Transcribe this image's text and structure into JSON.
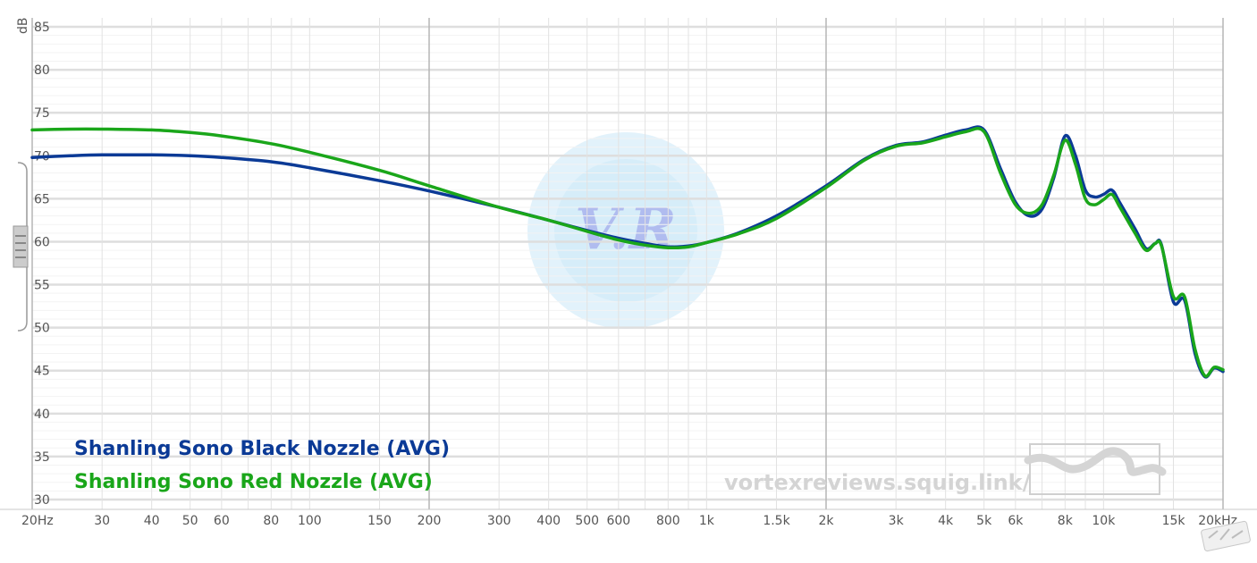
{
  "chart_data": {
    "type": "line",
    "title": "",
    "xlabel": "",
    "ylabel": "dB",
    "x_scale": "log",
    "xlim": [
      20,
      20000
    ],
    "ylim": [
      30,
      85
    ],
    "grid": true,
    "legend_position": "bottom-left",
    "x_tick_labels": [
      {
        "value": 20,
        "label": "20Hz",
        "major": true
      },
      {
        "value": 30,
        "label": "30",
        "major": false
      },
      {
        "value": 40,
        "label": "40",
        "major": false
      },
      {
        "value": 50,
        "label": "50",
        "major": false
      },
      {
        "value": 60,
        "label": "60",
        "major": false
      },
      {
        "value": 80,
        "label": "80",
        "major": false
      },
      {
        "value": 100,
        "label": "100",
        "major": false
      },
      {
        "value": 150,
        "label": "150",
        "major": false
      },
      {
        "value": 200,
        "label": "200",
        "major": true
      },
      {
        "value": 300,
        "label": "300",
        "major": false
      },
      {
        "value": 400,
        "label": "400",
        "major": false
      },
      {
        "value": 500,
        "label": "500",
        "major": false
      },
      {
        "value": 600,
        "label": "600",
        "major": false
      },
      {
        "value": 800,
        "label": "800",
        "major": false
      },
      {
        "value": 1000,
        "label": "1k",
        "major": false
      },
      {
        "value": 1500,
        "label": "1.5k",
        "major": false
      },
      {
        "value": 2000,
        "label": "2k",
        "major": true
      },
      {
        "value": 3000,
        "label": "3k",
        "major": false
      },
      {
        "value": 4000,
        "label": "4k",
        "major": false
      },
      {
        "value": 5000,
        "label": "5k",
        "major": false
      },
      {
        "value": 6000,
        "label": "6k",
        "major": false
      },
      {
        "value": 8000,
        "label": "8k",
        "major": false
      },
      {
        "value": 10000,
        "label": "10k",
        "major": false
      },
      {
        "value": 15000,
        "label": "15k",
        "major": false
      },
      {
        "value": 20000,
        "label": "20kHz",
        "major": true
      }
    ],
    "y_ticks": [
      30,
      35,
      40,
      45,
      50,
      55,
      60,
      65,
      70,
      75,
      80,
      85
    ],
    "series": [
      {
        "name": "Shanling Sono Black Nozzle (AVG)",
        "color": "#0b3a96",
        "points": [
          [
            20,
            69.8
          ],
          [
            25,
            70.0
          ],
          [
            30,
            70.1
          ],
          [
            40,
            70.1
          ],
          [
            50,
            70.0
          ],
          [
            60,
            69.8
          ],
          [
            80,
            69.3
          ],
          [
            100,
            68.6
          ],
          [
            150,
            67.1
          ],
          [
            200,
            65.9
          ],
          [
            300,
            64.0
          ],
          [
            400,
            62.5
          ],
          [
            500,
            61.3
          ],
          [
            600,
            60.4
          ],
          [
            700,
            59.8
          ],
          [
            800,
            59.4
          ],
          [
            900,
            59.5
          ],
          [
            1000,
            59.9
          ],
          [
            1200,
            61.0
          ],
          [
            1500,
            63.0
          ],
          [
            2000,
            66.5
          ],
          [
            2500,
            69.6
          ],
          [
            3000,
            71.2
          ],
          [
            3500,
            71.6
          ],
          [
            4000,
            72.4
          ],
          [
            4500,
            73.0
          ],
          [
            5000,
            73.0
          ],
          [
            5500,
            68.5
          ],
          [
            6000,
            64.6
          ],
          [
            6500,
            63.0
          ],
          [
            7000,
            63.8
          ],
          [
            7500,
            67.5
          ],
          [
            8000,
            72.3
          ],
          [
            8500,
            70.0
          ],
          [
            9000,
            66.0
          ],
          [
            9500,
            65.2
          ],
          [
            10000,
            65.5
          ],
          [
            10500,
            66.0
          ],
          [
            11000,
            64.5
          ],
          [
            12000,
            61.5
          ],
          [
            12800,
            59.2
          ],
          [
            13500,
            59.8
          ],
          [
            14000,
            59.6
          ],
          [
            15000,
            53.0
          ],
          [
            16000,
            53.2
          ],
          [
            17000,
            47.0
          ],
          [
            18000,
            44.3
          ],
          [
            19000,
            45.3
          ],
          [
            20000,
            44.9
          ]
        ]
      },
      {
        "name": "Shanling Sono Red Nozzle (AVG)",
        "color": "#1aa61a",
        "points": [
          [
            20,
            73.0
          ],
          [
            25,
            73.1
          ],
          [
            30,
            73.1
          ],
          [
            40,
            73.0
          ],
          [
            50,
            72.7
          ],
          [
            60,
            72.3
          ],
          [
            80,
            71.4
          ],
          [
            100,
            70.4
          ],
          [
            150,
            68.3
          ],
          [
            200,
            66.5
          ],
          [
            300,
            64.0
          ],
          [
            400,
            62.5
          ],
          [
            500,
            61.2
          ],
          [
            600,
            60.2
          ],
          [
            700,
            59.6
          ],
          [
            800,
            59.3
          ],
          [
            900,
            59.4
          ],
          [
            1000,
            59.9
          ],
          [
            1200,
            60.9
          ],
          [
            1500,
            62.7
          ],
          [
            2000,
            66.3
          ],
          [
            2500,
            69.5
          ],
          [
            3000,
            71.1
          ],
          [
            3500,
            71.5
          ],
          [
            4000,
            72.2
          ],
          [
            4500,
            72.8
          ],
          [
            5000,
            72.8
          ],
          [
            5500,
            68.0
          ],
          [
            6000,
            64.3
          ],
          [
            6500,
            63.3
          ],
          [
            7000,
            64.3
          ],
          [
            7500,
            67.8
          ],
          [
            8000,
            71.8
          ],
          [
            8500,
            69.0
          ],
          [
            9000,
            65.0
          ],
          [
            9500,
            64.3
          ],
          [
            10000,
            64.9
          ],
          [
            10500,
            65.5
          ],
          [
            11000,
            64.0
          ],
          [
            12000,
            61.0
          ],
          [
            12800,
            59.0
          ],
          [
            13500,
            59.8
          ],
          [
            14000,
            59.5
          ],
          [
            15000,
            53.6
          ],
          [
            16000,
            53.6
          ],
          [
            17000,
            47.5
          ],
          [
            18000,
            44.4
          ],
          [
            19000,
            45.4
          ],
          [
            20000,
            45.1
          ]
        ]
      }
    ]
  },
  "watermark": {
    "url_text": "vortexreviews.squig.link/",
    "logo_text": "V.R",
    "corner_mark_icon": "site-watermark-icon",
    "squig_logo_icon": "squiglink-wave-icon"
  }
}
